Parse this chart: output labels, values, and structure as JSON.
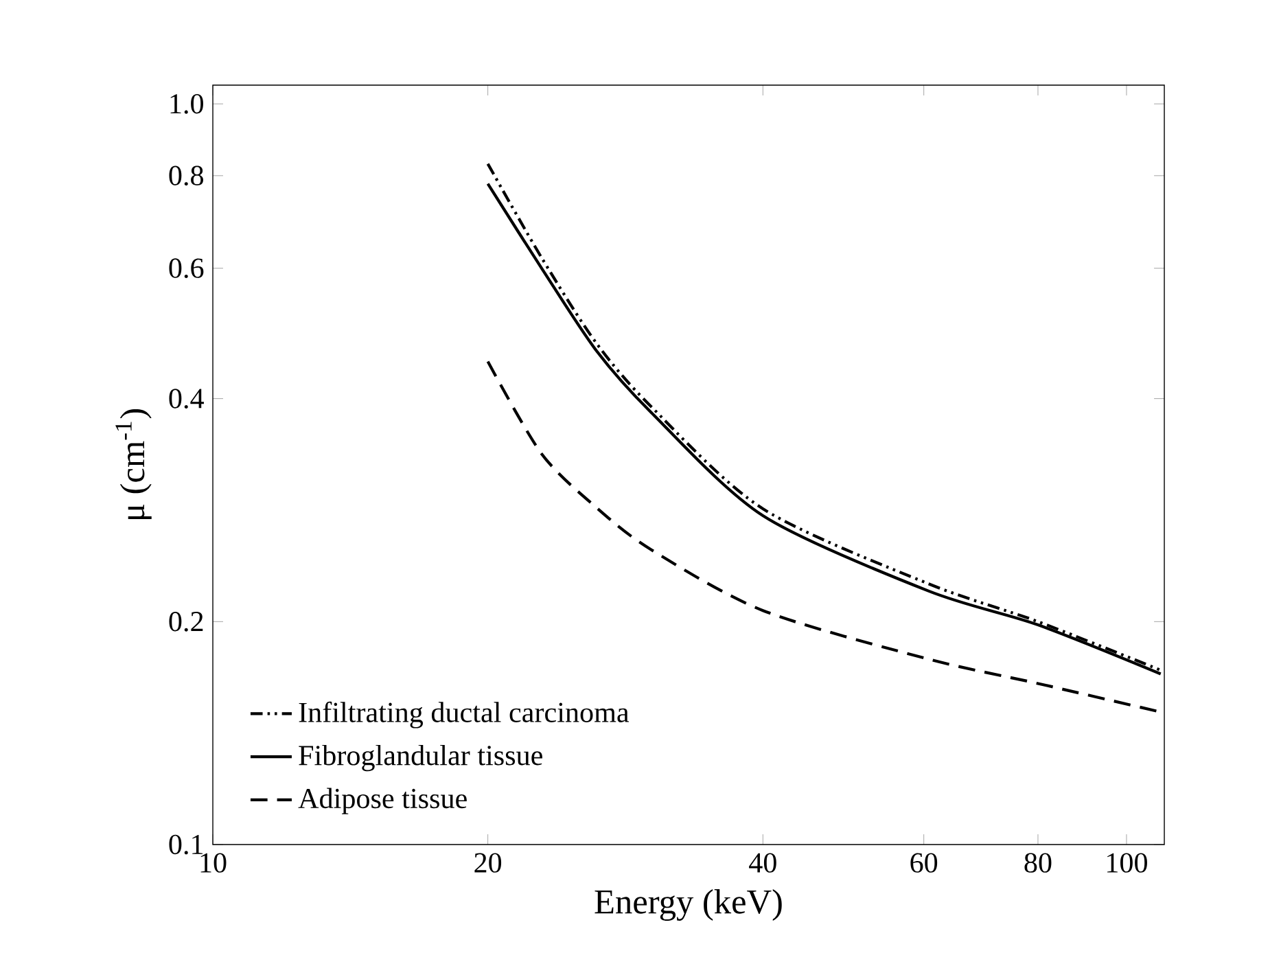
{
  "chart_data": {
    "type": "line",
    "xlabel": "Energy (keV)",
    "ylabel": "μ (cm$^{-1}$)",
    "log": "xy",
    "xlim": [
      10,
      110
    ],
    "ylim": [
      0.1,
      1.06
    ],
    "xticks": [
      10,
      20,
      40,
      60,
      80,
      100
    ],
    "yticks": [
      0.1,
      0.2,
      0.4,
      0.6,
      0.8,
      {
        "value": 1,
        "label": "1.0"
      }
    ],
    "legend": "bottom left",
    "grid": false,
    "marker": "none",
    "series": [
      {
        "name": "Infiltrating ductal carcinoma",
        "color": "#000000",
        "line_style": "dashdotdot",
        "x": [
          20,
          22.9,
          26.3,
          30.2,
          40,
          60.7,
          80,
          109
        ],
        "values": [
          0.83,
          0.62,
          0.475,
          0.39,
          0.284,
          0.225,
          0.2,
          0.172
        ]
      },
      {
        "name": "Fibroglandular tissue",
        "color": "#000000",
        "line_style": "solid",
        "x": [
          20,
          22.9,
          26.3,
          30.2,
          40,
          60.7,
          80,
          109
        ],
        "values": [
          0.78,
          0.6,
          0.464,
          0.383,
          0.278,
          0.22,
          0.198,
          0.17
        ]
      },
      {
        "name": "Adipose tissue",
        "color": "#000000",
        "line_style": "dashed",
        "x": [
          20,
          22.9,
          26.3,
          30.2,
          40,
          60.7,
          80,
          109
        ],
        "values": [
          0.449,
          0.337,
          0.285,
          0.25,
          0.207,
          0.178,
          0.165,
          0.151
        ]
      }
    ]
  }
}
